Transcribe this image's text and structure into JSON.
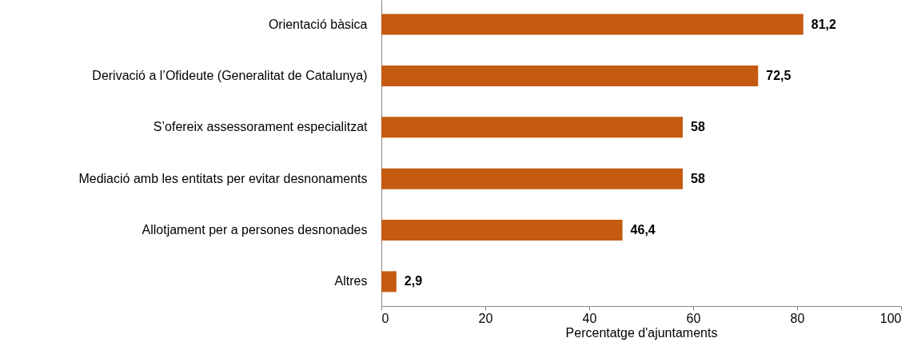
{
  "chart_data": {
    "type": "bar",
    "orientation": "horizontal",
    "xlabel": "Percentatge d'ajuntaments",
    "categories": [
      "Orientació bàsica ",
      "Derivació a l’Ofideute (Generalitat de Catalunya)",
      "S’ofereix assessorament especialitzat",
      "Mediació amb les entitats per evitar desnonaments",
      "Allotjament per a persones desnonades",
      "Altres"
    ],
    "values": [
      81.2,
      72.5,
      58,
      58,
      46.4,
      2.9
    ],
    "value_labels": [
      "81,2",
      "72,5",
      "58",
      "58",
      "46,4",
      "2,9"
    ],
    "color": "#c55a11",
    "xlim": [
      0,
      100
    ],
    "xticks": [
      0,
      20,
      40,
      60,
      80,
      100
    ],
    "grid": false
  }
}
